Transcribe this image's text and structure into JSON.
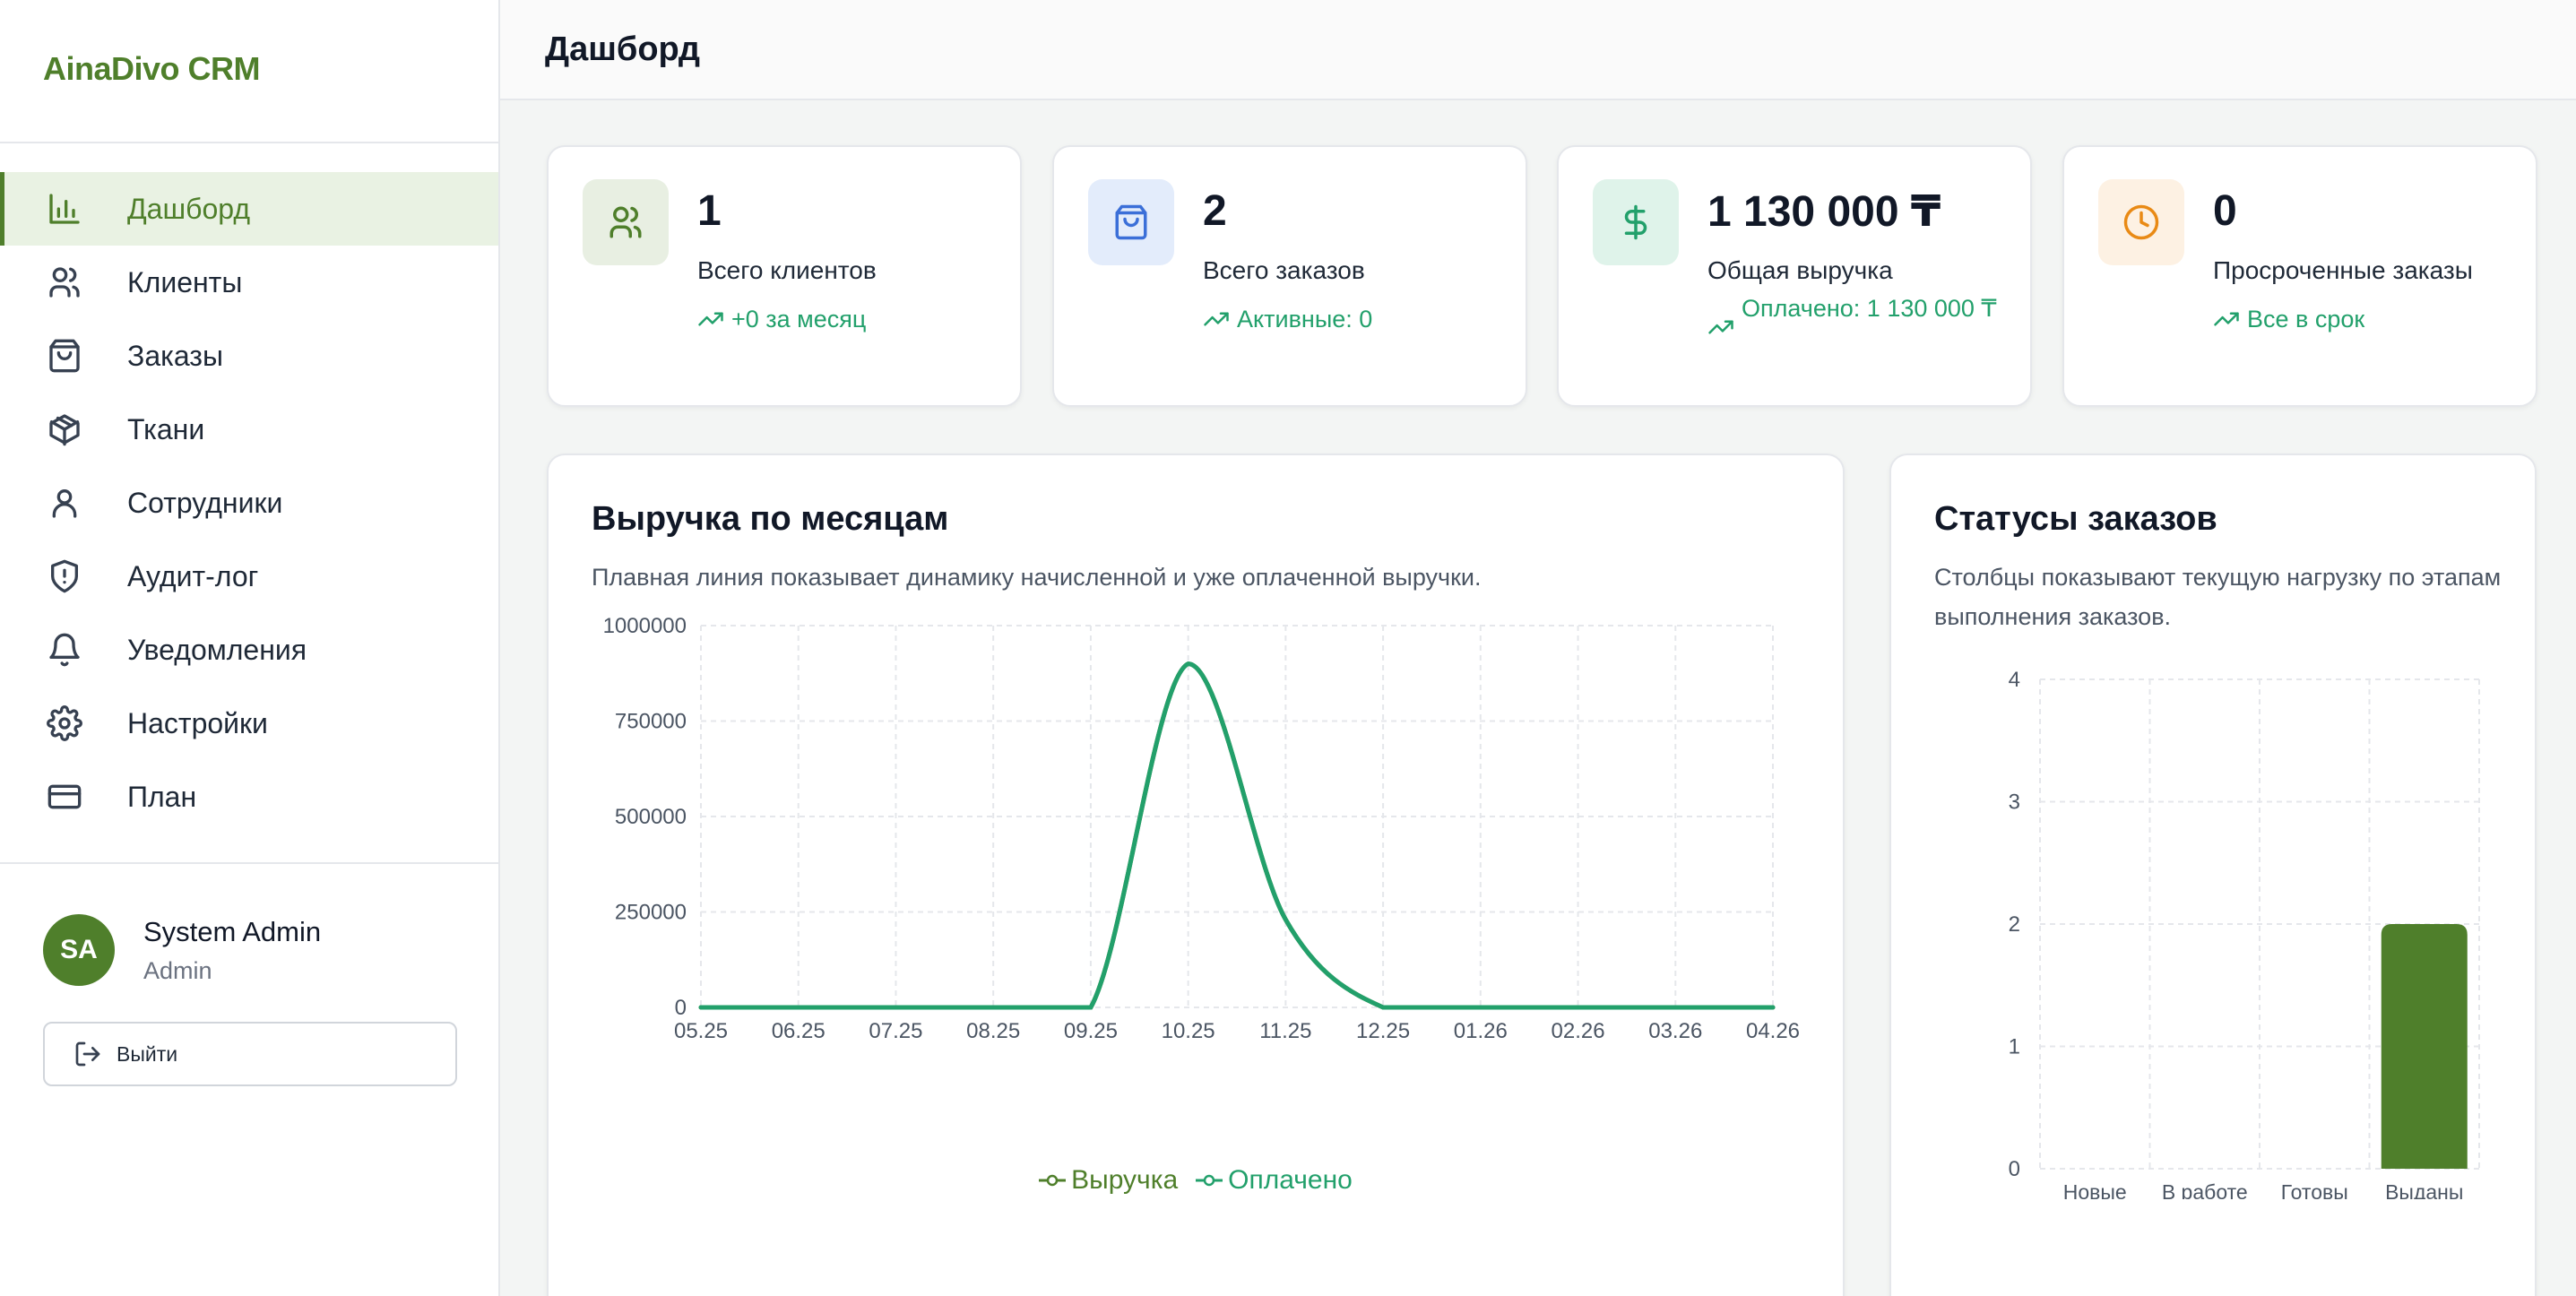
{
  "app": {
    "brand": "AinaDivo CRM"
  },
  "sidebar": {
    "items": [
      {
        "label": "Дашборд",
        "icon": "bar-chart-icon",
        "active": true
      },
      {
        "label": "Клиенты",
        "icon": "users-icon"
      },
      {
        "label": "Заказы",
        "icon": "shopping-bag-icon"
      },
      {
        "label": "Ткани",
        "icon": "package-icon"
      },
      {
        "label": "Сотрудники",
        "icon": "user-icon"
      },
      {
        "label": "Аудит-лог",
        "icon": "shield-alert-icon"
      },
      {
        "label": "Уведомления",
        "icon": "bell-icon"
      },
      {
        "label": "Настройки",
        "icon": "gear-icon"
      },
      {
        "label": "План",
        "icon": "credit-card-icon"
      }
    ],
    "user": {
      "initials": "SA",
      "name": "System Admin",
      "role": "Admin"
    },
    "logout_label": "Выйти"
  },
  "header": {
    "title": "Дашборд"
  },
  "stats": [
    {
      "value": "1",
      "label": "Всего клиентов",
      "note": "+0 за месяц",
      "icon": "users-icon",
      "bg": "#e8efe2",
      "fg": "#4f7f2b"
    },
    {
      "value": "2",
      "label": "Всего заказов",
      "note": "Активные: 0",
      "icon": "shopping-bag-icon",
      "bg": "#e3ecfb",
      "fg": "#3b6fd8"
    },
    {
      "value": "1 130 000 ₸",
      "label": "Общая выручка",
      "note": "Оплачено: 1 130 000 ₸",
      "icon": "dollar-icon",
      "bg": "#dff3ea",
      "fg": "#22a06b"
    },
    {
      "value": "0",
      "label": "Просроченные заказы",
      "note": "Все в срок",
      "icon": "clock-icon",
      "bg": "#fdf1e3",
      "fg": "#e98a15"
    }
  ],
  "revenue": {
    "title": "Выручка по месяцам",
    "subtitle": "Плавная линия показывает динамику начисленной и уже оплаченной выручки."
  },
  "statuses": {
    "title": "Статусы заказов",
    "subtitle": "Столбцы показывают текущую нагрузку по этапам выполнения заказов."
  },
  "chart_data": [
    {
      "type": "line",
      "title": "Выручка по месяцам",
      "x": [
        "05.25",
        "06.25",
        "07.25",
        "08.25",
        "09.25",
        "10.25",
        "11.25",
        "12.25",
        "01.26",
        "02.26",
        "03.26",
        "04.26"
      ],
      "yticks": [
        "0",
        "250000",
        "500000",
        "750000",
        "1000000"
      ],
      "ylim": [
        0,
        1000000
      ],
      "grid": true,
      "legend": "bottom",
      "series": [
        {
          "name": "Выручка",
          "color": "#4f7f2b",
          "values": [
            0,
            0,
            0,
            0,
            0,
            900000,
            230000,
            0,
            0,
            0,
            0,
            0
          ]
        },
        {
          "name": "Оплачено",
          "color": "#22a06b",
          "values": [
            0,
            0,
            0,
            0,
            0,
            900000,
            230000,
            0,
            0,
            0,
            0,
            0
          ]
        }
      ]
    },
    {
      "type": "bar",
      "title": "Статусы заказов",
      "categories": [
        "Новые",
        "В работе",
        "Готовы",
        "Выданы"
      ],
      "yticks": [
        "0",
        "1",
        "2",
        "3",
        "4"
      ],
      "ylim": [
        0,
        4
      ],
      "grid": true,
      "color": "#4f7f2b",
      "values": [
        0,
        0,
        0,
        2
      ]
    }
  ]
}
